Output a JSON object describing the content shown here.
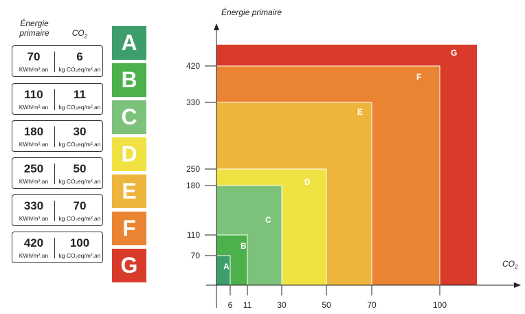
{
  "legend": {
    "energy_header_line1": "Énergie",
    "energy_header_line2": "primaire",
    "co2_header": "CO",
    "co2_sub": "2",
    "rows": [
      {
        "energy": "70",
        "energy_unit": "KWh/m².an",
        "co2": "6",
        "co2_unit": "kg CO₂eq/m².an"
      },
      {
        "energy": "110",
        "energy_unit": "KWh/m².an",
        "co2": "11",
        "co2_unit": "kg CO₂eq/m².an"
      },
      {
        "energy": "180",
        "energy_unit": "KWh/m².an",
        "co2": "30",
        "co2_unit": "kg CO₂eq/m².an"
      },
      {
        "energy": "250",
        "energy_unit": "KWh/m².an",
        "co2": "50",
        "co2_unit": "kg CO₂eq/m².an"
      },
      {
        "energy": "330",
        "energy_unit": "KWh/m².an",
        "co2": "70",
        "co2_unit": "kg CO₂eq/m².an"
      },
      {
        "energy": "420",
        "energy_unit": "KWh/m².an",
        "co2": "100",
        "co2_unit": "kg CO₂eq/m².an"
      }
    ],
    "classes": [
      {
        "letter": "A",
        "color": "#3d9e6b"
      },
      {
        "letter": "B",
        "color": "#4cb14c"
      },
      {
        "letter": "C",
        "color": "#7dc27a"
      },
      {
        "letter": "D",
        "color": "#f0e242"
      },
      {
        "letter": "E",
        "color": "#eeb53c"
      },
      {
        "letter": "F",
        "color": "#ea8432"
      },
      {
        "letter": "G",
        "color": "#d93b2b"
      }
    ]
  },
  "diagram": {
    "y_axis_label": "Énergie primaire",
    "x_axis_label": "CO",
    "x_axis_sub": "2",
    "zones": [
      {
        "label": "G",
        "co2_max": 118,
        "energy_max": 470,
        "color": "#d93b2b"
      },
      {
        "label": "F",
        "co2_max": 100,
        "energy_max": 420,
        "color": "#ea8432"
      },
      {
        "label": "E",
        "co2_max": 70,
        "energy_max": 330,
        "color": "#eeb53c"
      },
      {
        "label": "D",
        "co2_max": 50,
        "energy_max": 250,
        "color": "#f0e242"
      },
      {
        "label": "C",
        "co2_max": 30,
        "energy_max": 180,
        "color": "#7dc27a"
      },
      {
        "label": "B",
        "co2_max": 11,
        "energy_max": 110,
        "color": "#4cb14c"
      },
      {
        "label": "A",
        "co2_max": 6,
        "energy_max": 70,
        "color": "#3d9e6b"
      }
    ],
    "x_ticks": [
      {
        "value": 6,
        "label": "6"
      },
      {
        "value": 11,
        "label": "11"
      },
      {
        "value": 30,
        "label": "30"
      },
      {
        "value": 50,
        "label": "50"
      },
      {
        "value": 70,
        "label": "70"
      },
      {
        "value": 100,
        "label": "100"
      }
    ],
    "y_ticks": [
      {
        "value": 70,
        "label": "70"
      },
      {
        "value": 110,
        "label": "110"
      },
      {
        "value": 180,
        "label": "180"
      },
      {
        "value": 250,
        "label": "250"
      },
      {
        "value": 330,
        "label": "330"
      },
      {
        "value": 420,
        "label": "420"
      }
    ]
  }
}
